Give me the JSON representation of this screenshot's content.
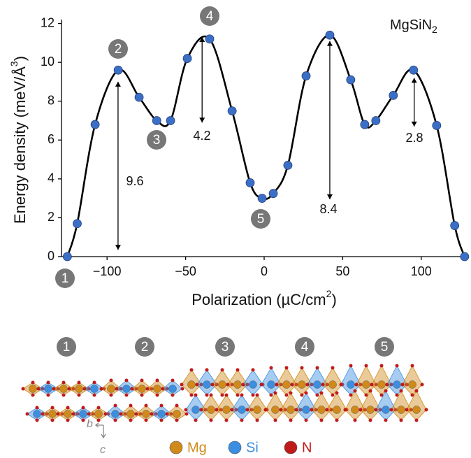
{
  "chart_data": {
    "type": "scatter",
    "annotation": {
      "text": "MgSiN",
      "subscript": "2"
    },
    "x_label": {
      "text": "Polarization (µC/cm",
      "superscript": "2",
      "end": ")"
    },
    "y_label": {
      "text": "Energy density (meV/Å",
      "superscript": "3",
      "end": ")"
    },
    "xlim": [
      -129,
      129
    ],
    "ylim": [
      0,
      12.2
    ],
    "xticks": [
      {
        "value": -100,
        "label": "−100"
      },
      {
        "value": -50,
        "label": "−50"
      },
      0,
      50,
      100
    ],
    "yticks": [
      0,
      2,
      4,
      6,
      8,
      10,
      12
    ],
    "series": [
      {
        "color": "#3b6fc6",
        "x": [
          -125.3,
          -119,
          -107.6,
          -92.9,
          -79.6,
          -68.4,
          -59.6,
          -48.9,
          -34.7,
          -20.4,
          -8.9,
          -1.3,
          5.8,
          15.1,
          26.7,
          41.8,
          55.1,
          64,
          71.1,
          82.2,
          95.1,
          109.8,
          121.3,
          127.6
        ],
        "values": [
          0,
          1.7,
          6.8,
          9.6,
          8.2,
          7.0,
          7.0,
          10.2,
          11.2,
          7.5,
          3.8,
          3.0,
          3.25,
          4.7,
          9.3,
          11.4,
          9.1,
          6.8,
          7.0,
          8.3,
          9.6,
          6.75,
          1.6,
          0
        ]
      }
    ],
    "curve_color": "#000000",
    "arrows": [
      {
        "x": -93,
        "from": 0.35,
        "to": 9.0,
        "label": "9.6"
      },
      {
        "x": -39.5,
        "from": 6.9,
        "to": 11.3,
        "label": "4.2"
      },
      {
        "x": 41.8,
        "from": 2.95,
        "to": 11.1,
        "label": "8.4"
      },
      {
        "x": 95.5,
        "from": 6.7,
        "to": 9.2,
        "label": "2.8"
      }
    ],
    "states": [
      "1",
      "2",
      "3",
      "4",
      "5"
    ],
    "legend": [
      {
        "name": "Mg",
        "color": "#d08a1a"
      },
      {
        "name": "Si",
        "color": "#3c8ee0"
      },
      {
        "name": "N",
        "color": "#c01a1a"
      }
    ],
    "axes_labels": [
      "b",
      "c"
    ]
  }
}
